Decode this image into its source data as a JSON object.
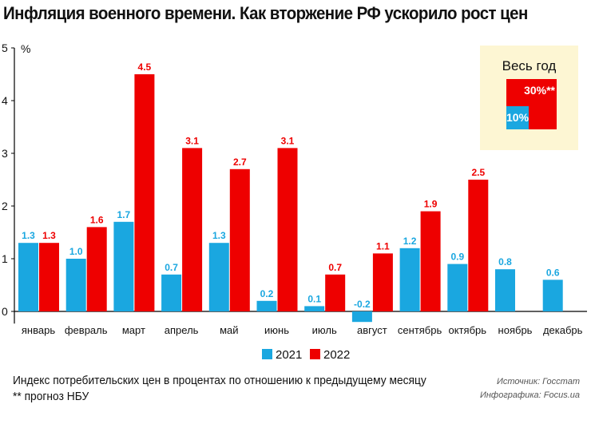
{
  "title": "Инфляция военного времени. Как вторжение РФ ускорило рост цен",
  "chart_data": {
    "type": "bar",
    "title": "Инфляция военного времени. Как вторжение РФ ускорило рост цен",
    "ylabel": "%",
    "ylim": [
      -0.2,
      5
    ],
    "yticks": [
      0,
      1,
      2,
      3,
      4,
      5
    ],
    "categories": [
      "январь",
      "февраль",
      "март",
      "апрель",
      "май",
      "июнь",
      "июль",
      "август",
      "сентябрь",
      "октябрь",
      "ноябрь",
      "декабрь"
    ],
    "series": [
      {
        "name": "2021",
        "color": "#1aa7e0",
        "values": [
          1.3,
          1.0,
          1.7,
          0.7,
          1.3,
          0.2,
          0.1,
          -0.2,
          1.2,
          0.9,
          0.8,
          0.6
        ]
      },
      {
        "name": "2022",
        "color": "#ee0000",
        "values": [
          1.3,
          1.6,
          4.5,
          3.1,
          2.7,
          3.1,
          0.7,
          1.1,
          1.9,
          2.5,
          null,
          null
        ]
      }
    ],
    "legend": "bottom-center",
    "grid": false
  },
  "inset": {
    "title": "Весь год",
    "value_2022": "30%**",
    "value_2021": "10%"
  },
  "footer": {
    "note": "Индекс потребительских цен в процентах по отношению к предыдущему месяцу",
    "footnote": "** прогноз НБУ",
    "source": "Источник: Госстат",
    "infographic": "Инфографика: Focus.ua"
  }
}
